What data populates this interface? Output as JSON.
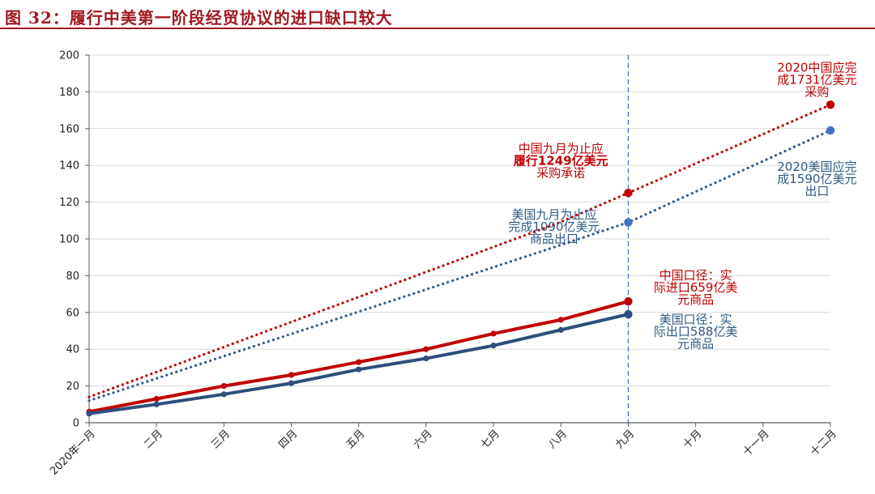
{
  "header": {
    "title": "图 32：履行中美第一阶段经贸协议的进口缺口较大"
  },
  "colors": {
    "china": "#c00000",
    "us": "#2e4f7c",
    "china_target": "#c00000",
    "us_target": "#2f5a86",
    "target_point_us": "#4472c4",
    "divider": "#4472c4",
    "header": "#a0191e"
  },
  "chart_data": {
    "type": "line",
    "title": "",
    "xlabel": "",
    "ylabel": "",
    "categories": [
      "2020年一月",
      "二月",
      "三月",
      "四月",
      "五月",
      "六月",
      "七月",
      "八月",
      "九月",
      "十月",
      "十一月",
      "十二月"
    ],
    "ylim": [
      0,
      200
    ],
    "yticks": [
      0,
      20,
      40,
      60,
      80,
      100,
      120,
      140,
      160,
      180,
      200
    ],
    "grid": true,
    "series": [
      {
        "key": "china_actual",
        "style": "solid",
        "color": "#c00000",
        "values": [
          6,
          13,
          20,
          26,
          33,
          40,
          48.5,
          56,
          66,
          null,
          null,
          null
        ]
      },
      {
        "key": "us_actual",
        "style": "solid",
        "color": "#2e4f7c",
        "values": [
          5,
          10,
          15.5,
          21.5,
          29,
          35,
          42,
          50.5,
          59,
          null,
          null,
          null
        ]
      },
      {
        "key": "china_target",
        "style": "dotted",
        "color": "#c00000",
        "values": [
          14,
          27.6,
          41.2,
          54.8,
          68.4,
          82,
          95.6,
          109.2,
          125,
          141,
          157,
          173
        ]
      },
      {
        "key": "us_target",
        "style": "dotted",
        "color": "#2f5a86",
        "values": [
          12,
          24.1,
          36.2,
          48.3,
          60.4,
          72.5,
          84.6,
          96.7,
          109,
          125.7,
          142.3,
          159
        ]
      }
    ],
    "markers": [
      {
        "series": "china_actual",
        "index": 8,
        "value": 66,
        "color": "#c00000"
      },
      {
        "series": "us_actual",
        "index": 8,
        "value": 59,
        "color": "#2e4f7c"
      },
      {
        "series": "china_target",
        "index": 8,
        "value": 125,
        "color": "#c00000"
      },
      {
        "series": "us_target",
        "index": 8,
        "value": 109,
        "color": "#4472c4"
      },
      {
        "series": "china_target",
        "index": 11,
        "value": 173,
        "color": "#c00000"
      },
      {
        "series": "us_target",
        "index": 11,
        "value": 159,
        "color": "#4472c4"
      }
    ],
    "divider_at": 8,
    "annotations": [
      {
        "key": "cn_sep",
        "color": "#c00000",
        "anchor": "middle",
        "index": 7.0,
        "y": 147,
        "lines": [
          "中国九月为止应",
          "履行1249亿美元",
          "采购承诺"
        ],
        "bold_line": 1
      },
      {
        "key": "us_sep",
        "color": "#2f5a86",
        "anchor": "middle",
        "index": 6.9,
        "y": 111,
        "lines": [
          "美国九月为止应",
          "完成1090亿美元",
          "商品出口"
        ]
      },
      {
        "key": "cn_act",
        "color": "#c00000",
        "anchor": "middle",
        "index": 9.0,
        "y": 78,
        "lines": [
          "中国口径：实",
          "际进口659亿美",
          "元商品"
        ]
      },
      {
        "key": "us_act",
        "color": "#2f5a86",
        "anchor": "middle",
        "index": 9.0,
        "y": 54,
        "lines": [
          "美国口径：实",
          "际出口588亿美",
          "元商品"
        ]
      },
      {
        "key": "cn_dec",
        "color": "#c00000",
        "anchor": "middle",
        "index": 10.8,
        "y": 191,
        "lines": [
          "2020中国应完",
          "成1731亿美元",
          "采购"
        ]
      },
      {
        "key": "us_dec",
        "color": "#2f5a86",
        "anchor": "middle",
        "index": 10.8,
        "y": 137,
        "lines": [
          "2020美国应完",
          "成1590亿美元",
          "出口"
        ]
      }
    ]
  }
}
